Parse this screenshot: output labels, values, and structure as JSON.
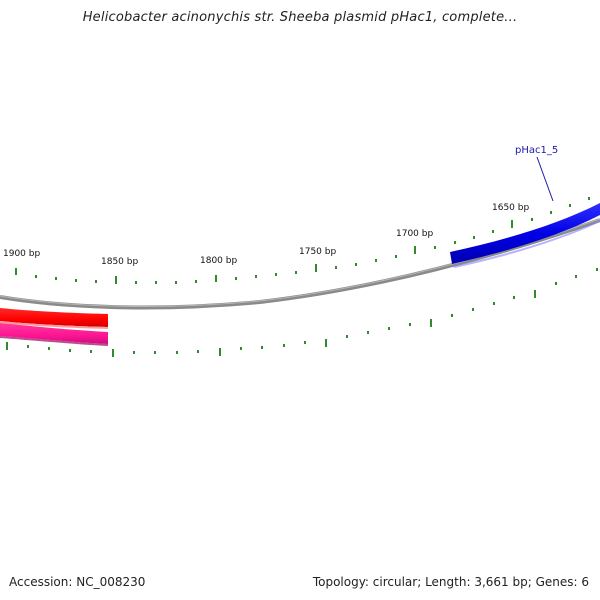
{
  "title": "Helicobacter acinonychis str. Sheeba plasmid pHac1, complete...",
  "footer": {
    "accession": "Accession: NC_008230",
    "summary": "Topology: circular; Length: 3,661 bp; Genes: 6"
  },
  "colors": {
    "backbone": "#7f7f7f",
    "tick": "#2e8b2e",
    "gene_blue": "#0000e6",
    "gene_red": "#ff0000",
    "gene_pink": "#ff1493",
    "label_line": "#1a1aa8"
  },
  "tick_labels": [
    "1900 bp",
    "1850 bp",
    "1800 bp",
    "1750 bp",
    "1700 bp",
    "1650 bp"
  ],
  "genes": [
    {
      "id": "pHac1_5",
      "label": "pHac1_5",
      "color": "blue"
    },
    {
      "id": "gene-red",
      "label": "",
      "color": "red"
    },
    {
      "id": "gene-pink",
      "label": "",
      "color": "pink"
    }
  ]
}
